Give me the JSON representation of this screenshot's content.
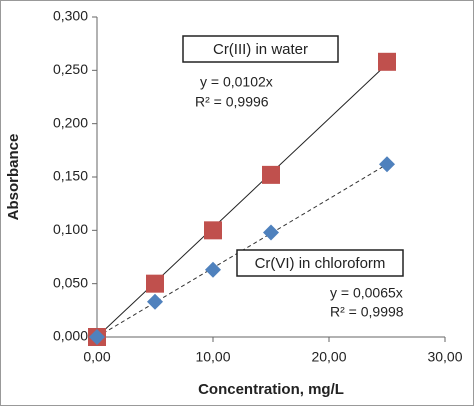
{
  "chart_data": {
    "type": "scatter",
    "x_label": "Concentration, mg/L",
    "y_label": "Absorbance",
    "x": [
      0,
      5,
      10,
      15,
      25
    ],
    "series": [
      {
        "name": "Cr(III) in water",
        "color": "#c0504d",
        "marker": "square",
        "line": "solid",
        "values": [
          0,
          0.05,
          0.1,
          0.152,
          0.258
        ],
        "equation": "y = 0,0102x",
        "r2": "R² = 0,9996"
      },
      {
        "name": "Cr(VI) in chloroform",
        "color": "#4f81bd",
        "marker": "diamond",
        "line": "dashed",
        "values": [
          0,
          0.033,
          0.063,
          0.098,
          0.162
        ],
        "equation": "y = 0,0065x",
        "r2": "R² = 0,9998"
      }
    ],
    "xlim": [
      0,
      30
    ],
    "xticks": [
      {
        "value": 0,
        "label": "0,00"
      },
      {
        "value": 10,
        "label": "10,00"
      },
      {
        "value": 20,
        "label": "20,00"
      },
      {
        "value": 30,
        "label": "30,00"
      }
    ],
    "ylim": [
      0,
      0.3
    ],
    "yticks": [
      {
        "value": 0,
        "label": "0,000"
      },
      {
        "value": 0.05,
        "label": "0,050"
      },
      {
        "value": 0.1,
        "label": "0,100"
      },
      {
        "value": 0.15,
        "label": "0,150"
      },
      {
        "value": 0.2,
        "label": "0,200"
      },
      {
        "value": 0.25,
        "label": "0,250"
      },
      {
        "value": 0.3,
        "label": "0,300"
      }
    ]
  }
}
